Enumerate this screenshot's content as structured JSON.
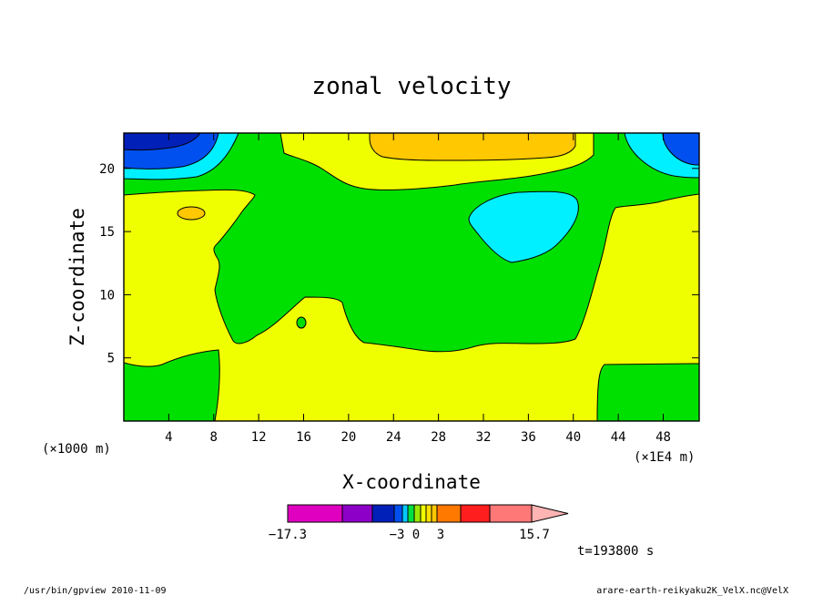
{
  "chart_data": {
    "type": "contour",
    "title": "zonal velocity",
    "xlabel": "X-coordinate",
    "ylabel": "Z-coordinate",
    "x_ticks": [
      "4",
      "8",
      "12",
      "16",
      "20",
      "24",
      "28",
      "32",
      "36",
      "40",
      "44",
      "48"
    ],
    "x_tick_values": [
      4,
      8,
      12,
      16,
      20,
      24,
      28,
      32,
      36,
      40,
      44,
      48
    ],
    "y_ticks": [
      "5",
      "10",
      "15",
      "20"
    ],
    "y_tick_values": [
      5,
      10,
      15,
      20
    ],
    "xlim": [
      0,
      51.2
    ],
    "ylim": [
      0,
      22.8
    ],
    "x_unit": "(×1E4 m)",
    "y_unit": "(×1000 m)",
    "time_label": "t=193800 s",
    "colorbar": {
      "labels": [
        {
          "text": "−17.3",
          "value": -17.3
        },
        {
          "text": "−3",
          "value": -3
        },
        {
          "text": "0",
          "value": 0
        },
        {
          "text": "3",
          "value": 3
        },
        {
          "text": "15.7",
          "value": 15.7
        }
      ],
      "colors": [
        "#e000c0",
        "#8c00c8",
        "#0020b8",
        "#0050f0",
        "#00c8ff",
        "#00e040",
        "#98e800",
        "#f0ff00",
        "#ffe000",
        "#ffc800",
        "#ff7800",
        "#ff1e1e",
        "#ff7878",
        "#ffb4b4"
      ]
    },
    "regions": [
      {
        "level": "dark-blue",
        "color": "#0020b8"
      },
      {
        "level": "blue",
        "color": "#0050f0"
      },
      {
        "level": "cyan",
        "color": "#00f0ff"
      },
      {
        "level": "green",
        "color": "#00e000"
      },
      {
        "level": "yellow",
        "color": "#f0ff00"
      },
      {
        "level": "orange",
        "color": "#ffc800"
      }
    ]
  },
  "footer": {
    "left": "/usr/bin/gpview  2010-11-09",
    "right": "arare-earth-reikyaku2K_VelX.nc@VelX"
  }
}
